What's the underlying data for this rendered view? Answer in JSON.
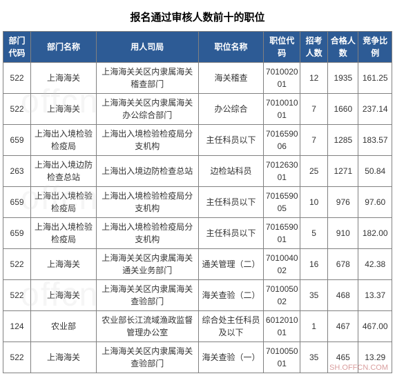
{
  "title": "报名通过审核人数前十的职位",
  "watermark_text": "offcn",
  "footer_link": "SH.OFFCN.COM",
  "table": {
    "header_bg": "#2d5b95",
    "header_color": "#ffffff",
    "border_color": "#808080",
    "columns": [
      {
        "label": "部门代码",
        "key": "dept_code"
      },
      {
        "label": "部门名称",
        "key": "dept_name"
      },
      {
        "label": "用人司局",
        "key": "bureau"
      },
      {
        "label": "职位名称",
        "key": "position"
      },
      {
        "label": "职位代码",
        "key": "pos_code"
      },
      {
        "label": "招考人数",
        "key": "recruit"
      },
      {
        "label": "合格人数",
        "key": "pass"
      },
      {
        "label": "竞争比例",
        "key": "ratio"
      }
    ],
    "rows": [
      {
        "dept_code": "522",
        "dept_name": "上海海关",
        "bureau": "上海海关关区内隶属海关稽查部门",
        "position": "海关稽查",
        "pos_code": "701002001",
        "recruit": "12",
        "pass": "1935",
        "ratio": "161.25"
      },
      {
        "dept_code": "522",
        "dept_name": "上海海关",
        "bureau": "上海海关关区内隶属海关办公综合部门",
        "position": "办公综合",
        "pos_code": "701001001",
        "recruit": "7",
        "pass": "1660",
        "ratio": "237.14"
      },
      {
        "dept_code": "659",
        "dept_name": "上海出入境检验检疫局",
        "bureau": "上海出入境检验检疫局分支机构",
        "position": "主任科员以下",
        "pos_code": "701659006",
        "recruit": "7",
        "pass": "1285",
        "ratio": "183.57"
      },
      {
        "dept_code": "263",
        "dept_name": "上海出入境边防检查总站",
        "bureau": "上海出入境边防检查总站",
        "position": "边检站科员",
        "pos_code": "701263001",
        "recruit": "25",
        "pass": "1271",
        "ratio": "50.84"
      },
      {
        "dept_code": "659",
        "dept_name": "上海出入境检验检疫局",
        "bureau": "上海出入境检验检疫局分支机构",
        "position": "主任科员以下",
        "pos_code": "701659005",
        "recruit": "10",
        "pass": "976",
        "ratio": "97.60"
      },
      {
        "dept_code": "659",
        "dept_name": "上海出入境检验检疫局",
        "bureau": "上海出入境检验检疫局分支机构",
        "position": "主任科员以下",
        "pos_code": "701659001",
        "recruit": "5",
        "pass": "910",
        "ratio": "182.00"
      },
      {
        "dept_code": "522",
        "dept_name": "上海海关",
        "bureau": "上海海关关区内隶属海关通关业务部门",
        "position": "通关管理（二）",
        "pos_code": "701004002",
        "recruit": "16",
        "pass": "678",
        "ratio": "42.38"
      },
      {
        "dept_code": "522",
        "dept_name": "上海海关",
        "bureau": "上海海关关区内隶属海关查验部门",
        "position": "海关查验（二）",
        "pos_code": "701005002",
        "recruit": "35",
        "pass": "468",
        "ratio": "13.37"
      },
      {
        "dept_code": "124",
        "dept_name": "农业部",
        "bureau": "农业部长江流域渔政监督管理办公室",
        "position": "综合处主任科员及以下",
        "pos_code": "601201001",
        "recruit": "1",
        "pass": "467",
        "ratio": "467.00"
      },
      {
        "dept_code": "522",
        "dept_name": "上海海关",
        "bureau": "上海海关关区内隶属海关查验部门",
        "position": "海关查验（一）",
        "pos_code": "701005001",
        "recruit": "35",
        "pass": "465",
        "ratio": "13.29"
      }
    ]
  }
}
